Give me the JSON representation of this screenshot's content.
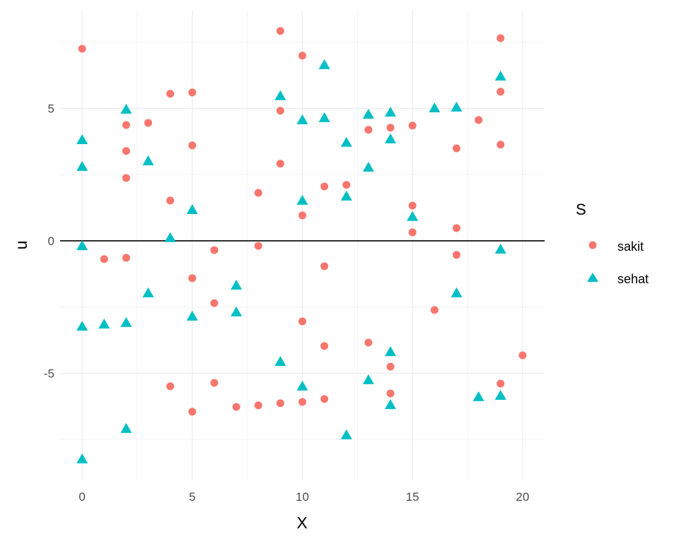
{
  "chart_data": {
    "type": "scatter",
    "title": "",
    "xlabel": "X",
    "ylabel": "u",
    "xlim": [
      -1,
      21
    ],
    "ylim": [
      -9.04,
      8.69
    ],
    "xticks": [
      0,
      5,
      10,
      15,
      20
    ],
    "yticks": [
      -5,
      0,
      5
    ],
    "grid": true,
    "hline": 0,
    "legend": {
      "title": "S",
      "placement": "right"
    },
    "colors": {
      "sakit": "#F8766D",
      "sehat": "#00BFC4"
    },
    "series": [
      {
        "name": "sakit",
        "shape": "circle",
        "points": [
          [
            0,
            7.25
          ],
          [
            1,
            -0.69
          ],
          [
            2,
            4.37
          ],
          [
            2,
            3.39
          ],
          [
            2,
            2.37
          ],
          [
            2,
            -0.64
          ],
          [
            3,
            4.45
          ],
          [
            4,
            5.55
          ],
          [
            4,
            1.52
          ],
          [
            4,
            -5.49
          ],
          [
            5,
            5.6
          ],
          [
            5,
            3.6
          ],
          [
            5,
            -1.41
          ],
          [
            5,
            -6.45
          ],
          [
            6,
            -0.35
          ],
          [
            6,
            -2.35
          ],
          [
            6,
            -5.36
          ],
          [
            7,
            -6.27
          ],
          [
            8,
            1.81
          ],
          [
            8,
            -0.19
          ],
          [
            8,
            -6.21
          ],
          [
            9,
            7.92
          ],
          [
            9,
            4.91
          ],
          [
            9,
            2.91
          ],
          [
            9,
            -6.13
          ],
          [
            10,
            6.99
          ],
          [
            10,
            0.96
          ],
          [
            10,
            -3.04
          ],
          [
            10,
            -6.08
          ],
          [
            11,
            2.05
          ],
          [
            11,
            -0.96
          ],
          [
            11,
            -3.97
          ],
          [
            11,
            -5.97
          ],
          [
            12,
            2.11
          ],
          [
            13,
            4.19
          ],
          [
            13,
            -3.84
          ],
          [
            14,
            4.27
          ],
          [
            14,
            -4.75
          ],
          [
            14,
            -5.76
          ],
          [
            15,
            4.35
          ],
          [
            15,
            1.33
          ],
          [
            15,
            0.32
          ],
          [
            16,
            -2.61
          ],
          [
            17,
            3.49
          ],
          [
            17,
            0.48
          ],
          [
            17,
            -0.53
          ],
          [
            18,
            4.56
          ],
          [
            19,
            7.65
          ],
          [
            19,
            5.63
          ],
          [
            19,
            3.63
          ],
          [
            19,
            -5.39
          ],
          [
            20,
            -4.32
          ]
        ]
      },
      {
        "name": "sehat",
        "shape": "triangle",
        "points": [
          [
            0,
            3.81
          ],
          [
            0,
            2.8
          ],
          [
            0,
            -0.19
          ],
          [
            0,
            -3.23
          ],
          [
            0,
            -8.24
          ],
          [
            1,
            -3.15
          ],
          [
            2,
            4.96
          ],
          [
            2,
            -3.09
          ],
          [
            2,
            -7.09
          ],
          [
            3,
            3.01
          ],
          [
            3,
            -1.97
          ],
          [
            4,
            0.11
          ],
          [
            5,
            1.17
          ],
          [
            5,
            -2.85
          ],
          [
            7,
            -1.68
          ],
          [
            7,
            -2.69
          ],
          [
            9,
            5.47
          ],
          [
            9,
            -4.56
          ],
          [
            10,
            4.56
          ],
          [
            10,
            1.52
          ],
          [
            10,
            -5.49
          ],
          [
            11,
            6.64
          ],
          [
            11,
            4.64
          ],
          [
            12,
            3.71
          ],
          [
            12,
            1.68
          ],
          [
            12,
            -7.33
          ],
          [
            13,
            4.77
          ],
          [
            13,
            2.77
          ],
          [
            13,
            -5.25
          ],
          [
            14,
            4.85
          ],
          [
            14,
            3.84
          ],
          [
            14,
            -4.19
          ],
          [
            14,
            -6.19
          ],
          [
            15,
            0.91
          ],
          [
            16,
            5.01
          ],
          [
            17,
            5.04
          ],
          [
            17,
            -1.97
          ],
          [
            18,
            -5.89
          ],
          [
            19,
            6.21
          ],
          [
            19,
            -0.32
          ],
          [
            19,
            -5.84
          ]
        ]
      }
    ]
  }
}
